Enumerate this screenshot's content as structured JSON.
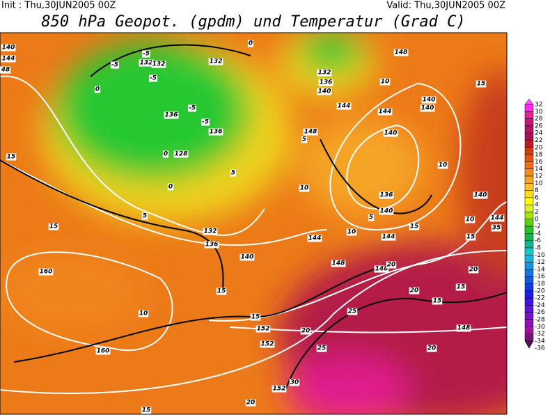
{
  "header": {
    "init": "Init : Thu,30JUN2005 00Z",
    "valid": "Valid: Thu,30JUN2005 00Z",
    "title": "850 hPa Geopot. (gpdm) und Temperatur (Grad C)"
  },
  "colorbar": {
    "ticks": [
      32,
      30,
      28,
      26,
      24,
      22,
      20,
      18,
      16,
      14,
      12,
      10,
      8,
      6,
      4,
      2,
      0,
      -2,
      -4,
      -6,
      -8,
      -10,
      -12,
      -14,
      -16,
      -18,
      -20,
      -22,
      -24,
      -26,
      -28,
      -30,
      -32,
      -34,
      -36
    ],
    "colors": [
      "#ff50ff",
      "#ff28f0",
      "#e61ea0",
      "#c81478",
      "#b41464",
      "#a01450",
      "#b91e28",
      "#d23c14",
      "#e6550f",
      "#f06e14",
      "#f58c1e",
      "#f5a528",
      "#ffc328",
      "#ffdc1e",
      "#ffff00",
      "#dcf01e",
      "#a0e600",
      "#5ad214",
      "#28c328",
      "#14b450",
      "#14b48c",
      "#14c8c8",
      "#14b4e6",
      "#1496e6",
      "#1478dc",
      "#145adc",
      "#143cdc",
      "#1e1ee6",
      "#3c14e6",
      "#5a14dc",
      "#7814c8",
      "#8c14b4",
      "#a014a0",
      "#781478",
      "#501450"
    ]
  },
  "map": {
    "contour_labels": [
      "140",
      "144",
      "48",
      "-5",
      "132",
      "132",
      "-5",
      "-5",
      "0",
      "132",
      "0",
      "132",
      "140",
      "136",
      "140",
      "148",
      "136",
      "-5",
      "-5",
      "136",
      "128",
      "0",
      "0",
      "5",
      "5",
      "144",
      "148",
      "144",
      "10",
      "10",
      "140",
      "140",
      "10",
      "15",
      "136",
      "140",
      "5",
      "10",
      "15",
      "144",
      "144",
      "144",
      "10",
      "15",
      "140",
      "35",
      "15",
      "5",
      "132",
      "136",
      "140",
      "160",
      "10",
      "160",
      "15",
      "148",
      "148",
      "20",
      "20",
      "15",
      "15",
      "152",
      "152",
      "20",
      "25",
      "25",
      "148",
      "20",
      "30",
      "152",
      "15",
      "20",
      "15",
      "20",
      "15"
    ]
  }
}
